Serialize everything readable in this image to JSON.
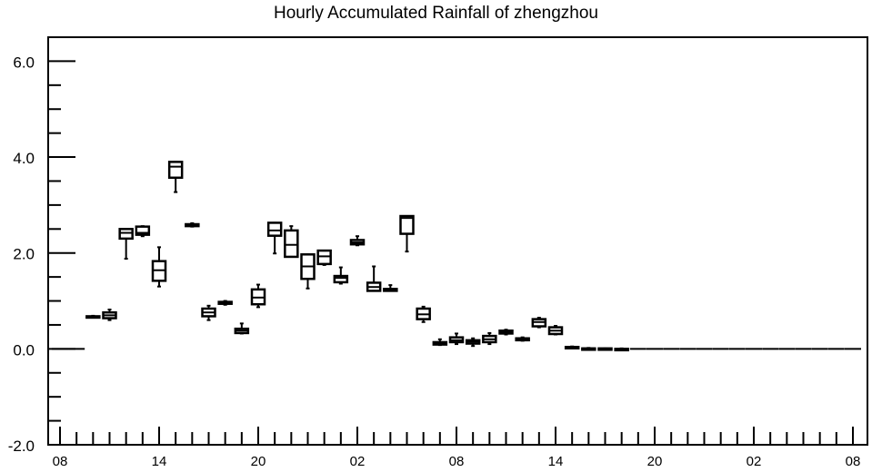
{
  "chart_data": {
    "type": "boxplot",
    "title": "Hourly Accumulated Rainfall of zhengzhou",
    "xlabel": "",
    "ylabel": "",
    "ylim": [
      -2.0,
      6.5
    ],
    "y_tick_labels": [
      "6.0",
      "4.0",
      "2.0",
      "0.0",
      "-2.0"
    ],
    "y_tick_values": [
      6.0,
      4.0,
      2.0,
      0.0,
      -2.0
    ],
    "y_minor_step": 0.5,
    "x_range_hours": [
      0,
      48
    ],
    "x_tick_labels": [
      "08",
      "14",
      "20",
      "02",
      "08",
      "14",
      "20",
      "02",
      "08"
    ],
    "x_tick_hours": [
      0,
      6,
      12,
      18,
      24,
      30,
      36,
      42,
      48
    ],
    "x_minor_step_hours": 1,
    "grid": false,
    "boxes": [
      {
        "hour": 0,
        "min": 0.0,
        "q1": 0.0,
        "median": 0.0,
        "q3": 0.0,
        "max": 0.0
      },
      {
        "hour": 1,
        "min": 0.0,
        "q1": 0.0,
        "median": 0.0,
        "q3": 0.0,
        "max": 0.0
      },
      {
        "hour": 2,
        "min": 0.65,
        "q1": 0.66,
        "median": 0.67,
        "q3": 0.68,
        "max": 0.69
      },
      {
        "hour": 3,
        "min": 0.6,
        "q1": 0.64,
        "median": 0.7,
        "q3": 0.76,
        "max": 0.82
      },
      {
        "hour": 4,
        "min": 1.88,
        "q1": 2.3,
        "median": 2.42,
        "q3": 2.5,
        "max": 2.5
      },
      {
        "hour": 5,
        "min": 2.35,
        "q1": 2.38,
        "median": 2.42,
        "q3": 2.55,
        "max": 2.56
      },
      {
        "hour": 6,
        "min": 1.3,
        "q1": 1.42,
        "median": 1.64,
        "q3": 1.83,
        "max": 2.12
      },
      {
        "hour": 7,
        "min": 3.27,
        "q1": 3.57,
        "median": 3.8,
        "q3": 3.9,
        "max": 3.9
      },
      {
        "hour": 8,
        "min": 2.55,
        "q1": 2.56,
        "median": 2.58,
        "q3": 2.6,
        "max": 2.62
      },
      {
        "hour": 9,
        "min": 0.6,
        "q1": 0.68,
        "median": 0.76,
        "q3": 0.84,
        "max": 0.9
      },
      {
        "hour": 10,
        "min": 0.92,
        "q1": 0.94,
        "median": 0.96,
        "q3": 0.98,
        "max": 1.0
      },
      {
        "hour": 11,
        "min": 0.32,
        "q1": 0.33,
        "median": 0.38,
        "q3": 0.42,
        "max": 0.53
      },
      {
        "hour": 12,
        "min": 0.87,
        "q1": 0.93,
        "median": 1.07,
        "q3": 1.24,
        "max": 1.34
      },
      {
        "hour": 13,
        "min": 1.99,
        "q1": 2.36,
        "median": 2.47,
        "q3": 2.63,
        "max": 2.63
      },
      {
        "hour": 14,
        "min": 1.92,
        "q1": 1.92,
        "median": 2.17,
        "q3": 2.47,
        "max": 2.56
      },
      {
        "hour": 15,
        "min": 1.26,
        "q1": 1.46,
        "median": 1.72,
        "q3": 1.97,
        "max": 1.97
      },
      {
        "hour": 16,
        "min": 1.75,
        "q1": 1.77,
        "median": 1.93,
        "q3": 2.05,
        "max": 2.05
      },
      {
        "hour": 17,
        "min": 1.36,
        "q1": 1.39,
        "median": 1.48,
        "q3": 1.52,
        "max": 1.7
      },
      {
        "hour": 18,
        "min": 2.16,
        "q1": 2.18,
        "median": 2.22,
        "q3": 2.27,
        "max": 2.35
      },
      {
        "hour": 19,
        "min": 1.21,
        "q1": 1.21,
        "median": 1.29,
        "q3": 1.38,
        "max": 1.72
      },
      {
        "hour": 20,
        "min": 1.21,
        "q1": 1.21,
        "median": 1.23,
        "q3": 1.25,
        "max": 1.33
      },
      {
        "hour": 21,
        "min": 2.03,
        "q1": 2.4,
        "median": 2.73,
        "q3": 2.77,
        "max": 2.77
      },
      {
        "hour": 22,
        "min": 0.56,
        "q1": 0.62,
        "median": 0.72,
        "q3": 0.84,
        "max": 0.88
      },
      {
        "hour": 23,
        "min": 0.08,
        "q1": 0.09,
        "median": 0.12,
        "q3": 0.14,
        "max": 0.2
      },
      {
        "hour": 24,
        "min": 0.1,
        "q1": 0.14,
        "median": 0.18,
        "q3": 0.24,
        "max": 0.32
      },
      {
        "hour": 25,
        "min": 0.06,
        "q1": 0.11,
        "median": 0.15,
        "q3": 0.18,
        "max": 0.22
      },
      {
        "hour": 26,
        "min": 0.1,
        "q1": 0.14,
        "median": 0.2,
        "q3": 0.27,
        "max": 0.33
      },
      {
        "hour": 27,
        "min": 0.3,
        "q1": 0.32,
        "median": 0.35,
        "q3": 0.38,
        "max": 0.4
      },
      {
        "hour": 28,
        "min": 0.17,
        "q1": 0.18,
        "median": 0.21,
        "q3": 0.22,
        "max": 0.24
      },
      {
        "hour": 29,
        "min": 0.45,
        "q1": 0.47,
        "median": 0.56,
        "q3": 0.62,
        "max": 0.65
      },
      {
        "hour": 30,
        "min": 0.3,
        "q1": 0.31,
        "median": 0.38,
        "q3": 0.45,
        "max": 0.48
      },
      {
        "hour": 31,
        "min": 0.01,
        "q1": 0.02,
        "median": 0.03,
        "q3": 0.04,
        "max": 0.05
      },
      {
        "hour": 32,
        "min": 0.0,
        "q1": 0.0,
        "median": 0.01,
        "q3": 0.01,
        "max": 0.02
      },
      {
        "hour": 33,
        "min": 0.0,
        "q1": 0.0,
        "median": 0.0,
        "q3": 0.01,
        "max": 0.01
      },
      {
        "hour": 34,
        "min": 0.0,
        "q1": 0.0,
        "median": 0.0,
        "q3": 0.0,
        "max": 0.01
      },
      {
        "hour": 35,
        "min": 0.0,
        "q1": 0.0,
        "median": 0.0,
        "q3": 0.0,
        "max": 0.0
      },
      {
        "hour": 36,
        "min": 0.0,
        "q1": 0.0,
        "median": 0.0,
        "q3": 0.0,
        "max": 0.0
      },
      {
        "hour": 37,
        "min": 0.0,
        "q1": 0.0,
        "median": 0.0,
        "q3": 0.0,
        "max": 0.0
      },
      {
        "hour": 38,
        "min": 0.0,
        "q1": 0.0,
        "median": 0.0,
        "q3": 0.0,
        "max": 0.0
      },
      {
        "hour": 39,
        "min": 0.0,
        "q1": 0.0,
        "median": 0.0,
        "q3": 0.0,
        "max": 0.0
      },
      {
        "hour": 40,
        "min": 0.0,
        "q1": 0.0,
        "median": 0.0,
        "q3": 0.0,
        "max": 0.0
      },
      {
        "hour": 41,
        "min": 0.0,
        "q1": 0.0,
        "median": 0.0,
        "q3": 0.0,
        "max": 0.0
      },
      {
        "hour": 42,
        "min": 0.0,
        "q1": 0.0,
        "median": 0.0,
        "q3": 0.0,
        "max": 0.0
      },
      {
        "hour": 43,
        "min": 0.0,
        "q1": 0.0,
        "median": 0.0,
        "q3": 0.0,
        "max": 0.0
      },
      {
        "hour": 44,
        "min": 0.0,
        "q1": 0.0,
        "median": 0.0,
        "q3": 0.0,
        "max": 0.0
      },
      {
        "hour": 45,
        "min": 0.0,
        "q1": 0.0,
        "median": 0.0,
        "q3": 0.0,
        "max": 0.0
      },
      {
        "hour": 46,
        "min": 0.0,
        "q1": 0.0,
        "median": 0.0,
        "q3": 0.0,
        "max": 0.0
      },
      {
        "hour": 47,
        "min": 0.0,
        "q1": 0.0,
        "median": 0.0,
        "q3": 0.0,
        "max": 0.0
      },
      {
        "hour": 48,
        "min": 0.0,
        "q1": 0.0,
        "median": 0.0,
        "q3": 0.0,
        "max": 0.0
      }
    ],
    "style": {
      "stroke": "#000000",
      "background": "#ffffff"
    }
  }
}
